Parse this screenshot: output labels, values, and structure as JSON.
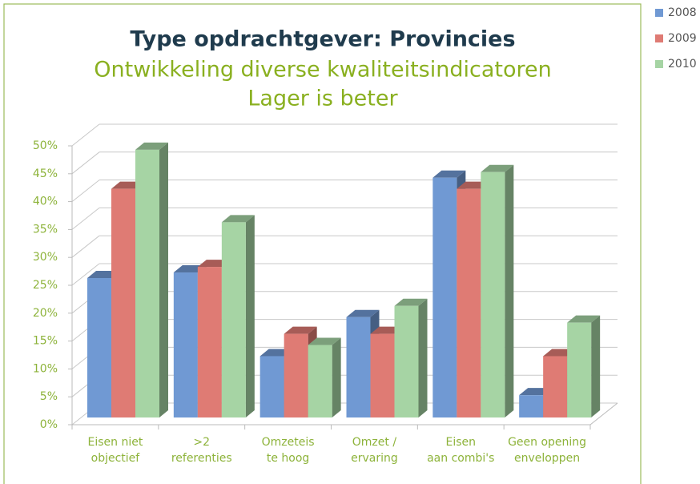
{
  "chart_data": {
    "type": "bar3d",
    "title": "Type opdrachtgever: Provincies",
    "subtitle": [
      "Ontwikkeling diverse kwaliteitsindicatoren",
      "Lager is beter"
    ],
    "categories": [
      [
        "Eisen niet",
        "objectief"
      ],
      [
        ">2",
        "referenties"
      ],
      [
        "Omzeteis",
        "te hoog"
      ],
      [
        "Omzet /",
        "ervaring"
      ],
      [
        "Eisen",
        "aan combi's"
      ],
      [
        "Geen opening",
        "enveloppen"
      ]
    ],
    "series": [
      {
        "name": "2008",
        "color": "#7099d3",
        "values": [
          25,
          26,
          11,
          18,
          43,
          4
        ]
      },
      {
        "name": "2009",
        "color": "#df7b74",
        "values": [
          41,
          27,
          15,
          15,
          41,
          11
        ]
      },
      {
        "name": "2010",
        "color": "#a6d4a4",
        "values": [
          48,
          35,
          13,
          20,
          44,
          17
        ]
      }
    ],
    "ylim": [
      0,
      50
    ],
    "yticks": [
      {
        "value": 0,
        "label": "0%"
      },
      {
        "value": 5,
        "label": "5%"
      },
      {
        "value": 10,
        "label": "10%"
      },
      {
        "value": 15,
        "label": "15%"
      },
      {
        "value": 20,
        "label": "20%"
      },
      {
        "value": 25,
        "label": "25%"
      },
      {
        "value": 30,
        "label": "30%"
      },
      {
        "value": 35,
        "label": "35%"
      },
      {
        "value": 40,
        "label": "40%"
      },
      {
        "value": 45,
        "label": "45%"
      },
      {
        "value": 50,
        "label": "50%"
      }
    ],
    "grid": true,
    "legend": "top-right"
  }
}
